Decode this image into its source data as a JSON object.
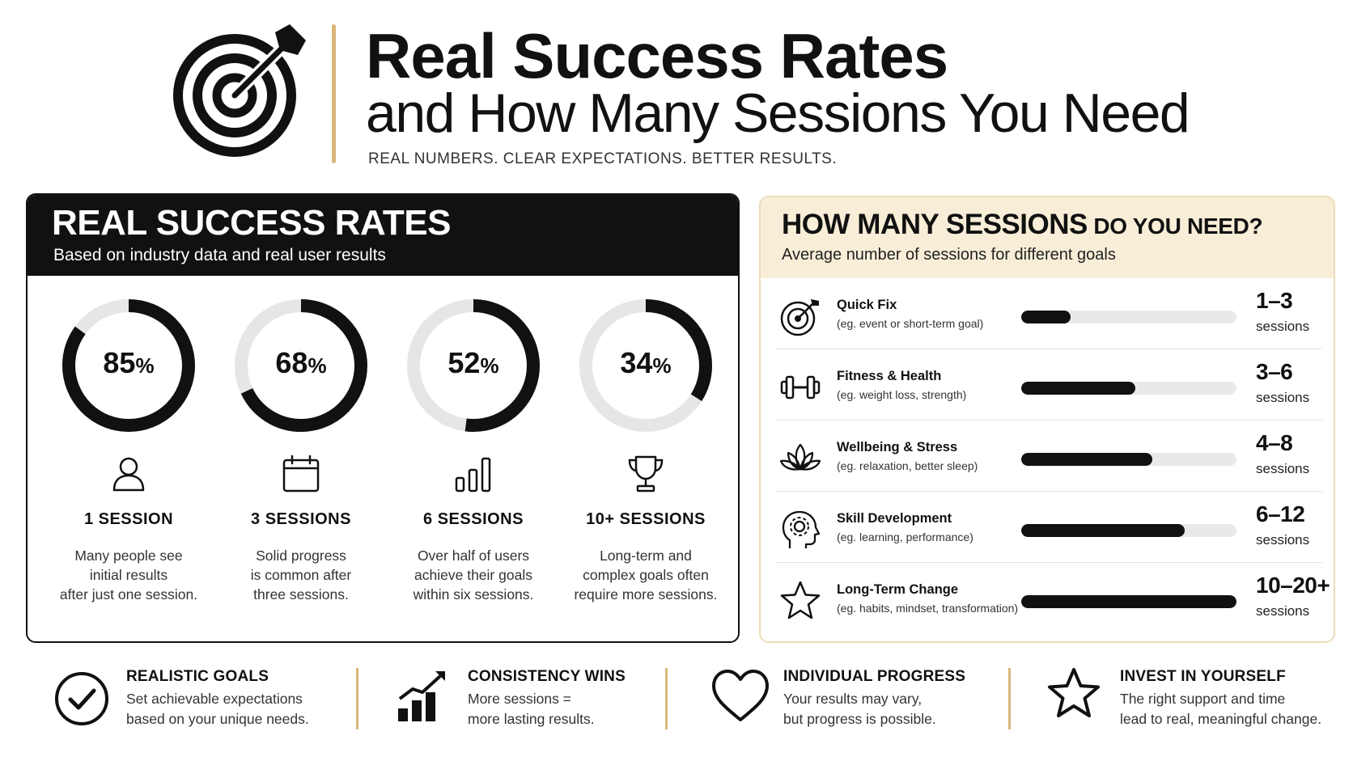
{
  "header": {
    "title": "Real Success Rates",
    "subtitle": "and How Many Sessions You Need",
    "tagline": "REAL NUMBERS. CLEAR EXPECTATIONS. BETTER RESULTS.",
    "icon": "target-arrow-icon",
    "accent_color": "#d9b77a"
  },
  "success_rates": {
    "title": "REAL SUCCESS RATES",
    "subtitle": "Based on industry data and real user results",
    "unit": "%",
    "items": [
      {
        "percent": 85,
        "percent_text": "85",
        "icon": "user-icon",
        "label": "1 SESSION",
        "desc": [
          "Many people see",
          "initial results",
          "after just one session."
        ]
      },
      {
        "percent": 68,
        "percent_text": "68",
        "icon": "calendar-icon",
        "label": "3 SESSIONS",
        "desc": [
          "Solid progress",
          "is common after",
          "three sessions."
        ]
      },
      {
        "percent": 52,
        "percent_text": "52",
        "icon": "bar-chart-icon",
        "label": "6 SESSIONS",
        "desc": [
          "Over half of users",
          "achieve their goals",
          "within six sessions."
        ]
      },
      {
        "percent": 34,
        "percent_text": "34",
        "icon": "trophy-icon",
        "label": "10+ SESSIONS",
        "desc": [
          "Long-term and",
          "complex goals often",
          "require more sessions."
        ]
      }
    ]
  },
  "sessions_needed": {
    "title_big": "HOW MANY SESSIONS",
    "title_small": " DO YOU NEED?",
    "subtitle": "Average number of sessions for different goals",
    "unit_label": "sessions",
    "goals": [
      {
        "name": "Quick Fix",
        "example": "(eg. event or short-term goal)",
        "count": "1–3",
        "level": 0.23,
        "icon": "target-icon"
      },
      {
        "name": "Fitness & Health",
        "example": "(eg. weight loss, strength)",
        "count": "3–6",
        "level": 0.53,
        "icon": "dumbbell-icon"
      },
      {
        "name": "Wellbeing & Stress",
        "example": "(eg. relaxation, better sleep)",
        "count": "4–8",
        "level": 0.61,
        "icon": "lotus-icon"
      },
      {
        "name": "Skill Development",
        "example": "(eg. learning, performance)",
        "count": "6–12",
        "level": 0.76,
        "icon": "head-gear-icon"
      },
      {
        "name": "Long-Term Change",
        "example": "(eg. habits, mindset, transformation)",
        "count": "10–20+",
        "level": 1.0,
        "icon": "star-icon"
      }
    ]
  },
  "tips": [
    {
      "icon": "checkmark-circle-icon",
      "title": "REALISTIC GOALS",
      "lines": [
        "Set achievable expectations",
        "based on your unique needs."
      ]
    },
    {
      "icon": "growth-chart-icon",
      "title": "CONSISTENCY WINS",
      "lines": [
        "More sessions =",
        "more lasting results."
      ]
    },
    {
      "icon": "heart-icon",
      "title": "INDIVIDUAL PROGRESS",
      "lines": [
        "Your results may vary,",
        "but progress is possible."
      ]
    },
    {
      "icon": "star-outline-icon",
      "title": "INVEST IN YOURSELF",
      "lines": [
        "The right support and time",
        "lead to real, meaningful change."
      ]
    }
  ]
}
